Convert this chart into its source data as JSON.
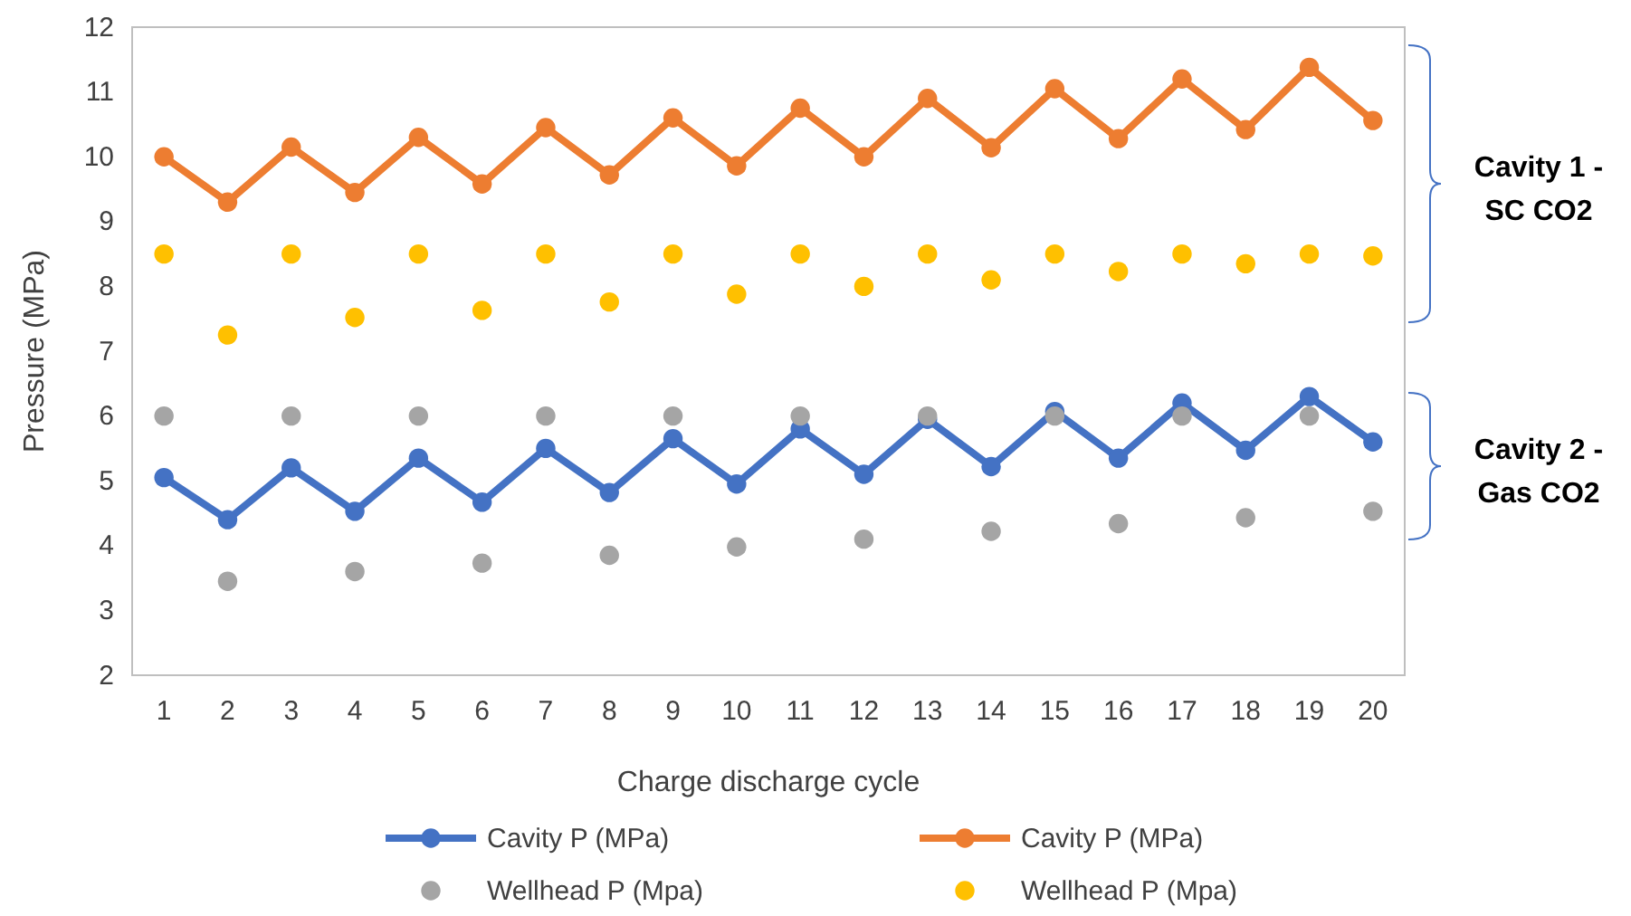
{
  "chart_data": {
    "type": "line",
    "xlabel": "Charge discharge cycle",
    "ylabel": "Pressure (MPa)",
    "categories": [
      "1",
      "2",
      "3",
      "4",
      "5",
      "6",
      "7",
      "8",
      "9",
      "10",
      "11",
      "12",
      "13",
      "14",
      "15",
      "16",
      "17",
      "18",
      "19",
      "20"
    ],
    "series": [
      {
        "name": "Cavity P (MPa)",
        "color": "#4472c4",
        "values": [
          5.05,
          4.4,
          5.2,
          4.53,
          5.35,
          4.67,
          5.5,
          4.82,
          5.65,
          4.95,
          5.8,
          5.1,
          5.95,
          5.22,
          6.07,
          5.35,
          6.2,
          5.47,
          6.3,
          5.6
        ]
      },
      {
        "name": "Cavity P (MPa)",
        "color": "#ed7d31",
        "values": [
          10.0,
          9.3,
          10.15,
          9.45,
          10.3,
          9.58,
          10.45,
          9.72,
          10.6,
          9.86,
          10.75,
          10.0,
          10.9,
          10.14,
          11.05,
          10.28,
          11.2,
          10.42,
          11.38,
          10.56
        ]
      },
      {
        "name": "Wellhead P (Mpa)",
        "type": "scatter",
        "color": "#a5a5a5",
        "values": [
          6.0,
          3.45,
          6.0,
          3.6,
          6.0,
          3.73,
          6.0,
          3.85,
          6.0,
          3.98,
          6.0,
          4.1,
          6.0,
          4.22,
          6.0,
          4.34,
          6.0,
          4.43,
          6.0,
          4.53
        ]
      },
      {
        "name": "Wellhead P (Mpa)",
        "type": "scatter",
        "color": "#ffc000",
        "values": [
          8.5,
          7.25,
          8.5,
          7.52,
          8.5,
          7.63,
          8.5,
          7.76,
          8.5,
          7.88,
          8.5,
          8.0,
          8.5,
          8.1,
          8.5,
          8.23,
          8.5,
          8.35,
          8.5,
          8.47
        ]
      }
    ],
    "ylim": [
      2,
      12
    ],
    "yticks": [
      2,
      3,
      4,
      5,
      6,
      7,
      8,
      9,
      10,
      11,
      12
    ],
    "marker": "circle",
    "legend": "bottom",
    "annotations": [
      "Cavity 1 - SC CO2",
      "Cavity 2 - Gas CO2"
    ]
  }
}
